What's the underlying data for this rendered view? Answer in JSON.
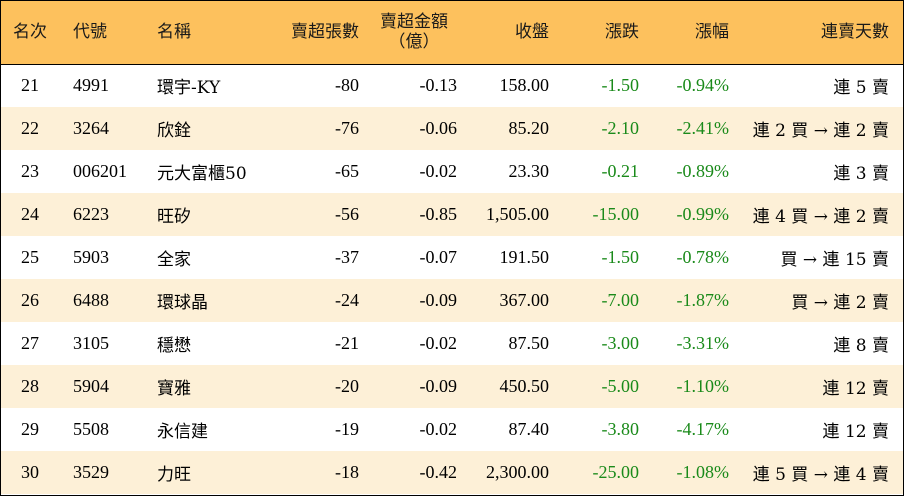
{
  "headers": {
    "rank": "名次",
    "code": "代號",
    "name": "名稱",
    "net_sell_lots": "賣超張數",
    "net_sell_amount_line1": "賣超金額",
    "net_sell_amount_line2": "（億）",
    "close": "收盤",
    "change": "漲跌",
    "change_pct": "漲幅",
    "streak": "連賣天數"
  },
  "rows": [
    {
      "rank": "21",
      "code": "4991",
      "name": "環宇-KY",
      "lots": "-80",
      "amount": "-0.13",
      "close": "158.00",
      "change": "-1.50",
      "pct": "-0.94%",
      "streak": "連 5 賣"
    },
    {
      "rank": "22",
      "code": "3264",
      "name": "欣銓",
      "lots": "-76",
      "amount": "-0.06",
      "close": "85.20",
      "change": "-2.10",
      "pct": "-2.41%",
      "streak": "連 2 買 → 連 2 賣"
    },
    {
      "rank": "23",
      "code": "006201",
      "name": "元大富櫃50",
      "lots": "-65",
      "amount": "-0.02",
      "close": "23.30",
      "change": "-0.21",
      "pct": "-0.89%",
      "streak": "連 3 賣"
    },
    {
      "rank": "24",
      "code": "6223",
      "name": "旺矽",
      "lots": "-56",
      "amount": "-0.85",
      "close": "1,505.00",
      "change": "-15.00",
      "pct": "-0.99%",
      "streak": "連 4 買 → 連 2 賣"
    },
    {
      "rank": "25",
      "code": "5903",
      "name": "全家",
      "lots": "-37",
      "amount": "-0.07",
      "close": "191.50",
      "change": "-1.50",
      "pct": "-0.78%",
      "streak": "買 → 連 15 賣"
    },
    {
      "rank": "26",
      "code": "6488",
      "name": "環球晶",
      "lots": "-24",
      "amount": "-0.09",
      "close": "367.00",
      "change": "-7.00",
      "pct": "-1.87%",
      "streak": "買 → 連 2 賣"
    },
    {
      "rank": "27",
      "code": "3105",
      "name": "穩懋",
      "lots": "-21",
      "amount": "-0.02",
      "close": "87.50",
      "change": "-3.00",
      "pct": "-3.31%",
      "streak": "連 8 賣"
    },
    {
      "rank": "28",
      "code": "5904",
      "name": "寶雅",
      "lots": "-20",
      "amount": "-0.09",
      "close": "450.50",
      "change": "-5.00",
      "pct": "-1.10%",
      "streak": "連 12 賣"
    },
    {
      "rank": "29",
      "code": "5508",
      "name": "永信建",
      "lots": "-19",
      "amount": "-0.02",
      "close": "87.40",
      "change": "-3.80",
      "pct": "-4.17%",
      "streak": "連 12 賣"
    },
    {
      "rank": "30",
      "code": "3529",
      "name": "力旺",
      "lots": "-18",
      "amount": "-0.42",
      "close": "2,300.00",
      "change": "-25.00",
      "pct": "-1.08%",
      "streak": "連 5 買 → 連 4 賣"
    }
  ],
  "colors": {
    "header_bg": "#fdc15d",
    "alt_row_bg": "#fdf0d7",
    "negative_text": "#1a8a1a"
  }
}
